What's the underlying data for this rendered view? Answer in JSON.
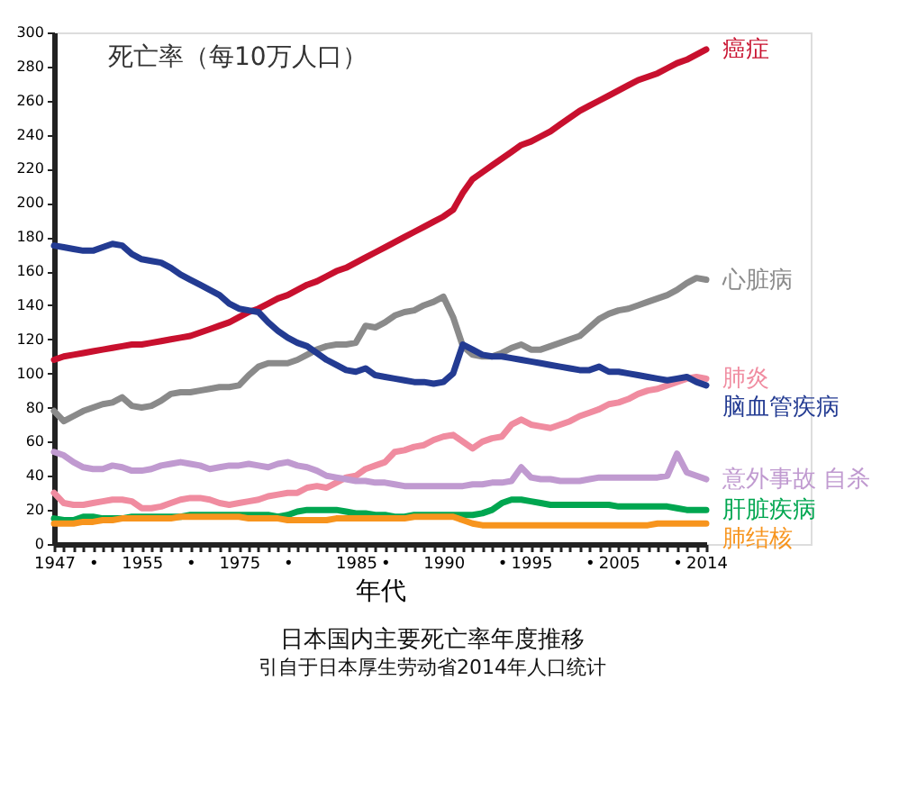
{
  "chart_data": {
    "type": "line",
    "title": "日本国内主要死亡率年度推移",
    "subtitle": "引自于日本厚生劳动省2014年人口统计",
    "ylabel": "死亡率（每10万人口）",
    "xlabel": "年代",
    "categories": [
      "1947",
      null,
      null,
      null,
      "•",
      null,
      null,
      null,
      null,
      "1955",
      null,
      null,
      null,
      null,
      "•",
      null,
      null,
      null,
      null,
      "1975",
      null,
      null,
      null,
      null,
      "•",
      null,
      null,
      null,
      null,
      null,
      null,
      "1985",
      null,
      null,
      "•",
      null,
      null,
      null,
      null,
      null,
      "1990",
      null,
      null,
      null,
      null,
      null,
      "•",
      null,
      null,
      "1995",
      null,
      null,
      null,
      null,
      null,
      "•",
      null,
      null,
      "2005",
      null,
      null,
      null,
      null,
      null,
      "•",
      null,
      null,
      "2014"
    ],
    "ylim": [
      0,
      300
    ],
    "yticks": [
      0,
      20,
      40,
      60,
      80,
      100,
      120,
      140,
      160,
      180,
      200,
      220,
      240,
      260,
      280,
      300
    ],
    "grid": false,
    "legend": false,
    "marker": "none",
    "line_style": "solid",
    "series": [
      {
        "name": "癌症",
        "color": "#c8102e",
        "values": [
          108,
          110,
          111,
          112,
          113,
          114,
          115,
          116,
          117,
          117,
          118,
          119,
          120,
          121,
          122,
          124,
          126,
          128,
          130,
          133,
          136,
          138,
          141,
          144,
          146,
          149,
          152,
          154,
          157,
          160,
          162,
          165,
          168,
          171,
          174,
          177,
          180,
          183,
          186,
          189,
          192,
          196,
          206,
          214,
          218,
          222,
          226,
          230,
          234,
          236,
          239,
          242,
          246,
          250,
          254,
          257,
          260,
          263,
          266,
          269,
          272,
          274,
          276,
          279,
          282,
          284,
          287,
          290
        ]
      },
      {
        "name": "心脏病",
        "color": "#8a8a8a",
        "values": [
          78,
          72,
          75,
          78,
          80,
          82,
          83,
          86,
          81,
          80,
          81,
          84,
          88,
          89,
          89,
          90,
          91,
          92,
          92,
          93,
          99,
          104,
          106,
          106,
          106,
          108,
          111,
          114,
          116,
          117,
          117,
          118,
          128,
          127,
          130,
          134,
          136,
          137,
          140,
          142,
          145,
          133,
          116,
          111,
          110,
          110,
          112,
          115,
          117,
          114,
          114,
          116,
          118,
          120,
          122,
          127,
          132,
          135,
          137,
          138,
          140,
          142,
          144,
          146,
          149,
          153,
          156,
          155
        ]
      },
      {
        "name": "肺炎",
        "color": "#f08ca0",
        "values": [
          30,
          24,
          23,
          23,
          24,
          25,
          26,
          26,
          25,
          21,
          21,
          22,
          24,
          26,
          27,
          27,
          26,
          24,
          23,
          24,
          25,
          26,
          28,
          29,
          30,
          30,
          33,
          34,
          33,
          36,
          39,
          40,
          44,
          46,
          48,
          54,
          55,
          57,
          58,
          61,
          63,
          64,
          60,
          56,
          60,
          62,
          63,
          70,
          73,
          70,
          69,
          68,
          70,
          72,
          75,
          77,
          79,
          82,
          83,
          85,
          88,
          90,
          91,
          93,
          95,
          97,
          98,
          97
        ]
      },
      {
        "name": "脑血管疾病",
        "color": "#233b92",
        "values": [
          175,
          174,
          173,
          172,
          172,
          174,
          176,
          175,
          170,
          167,
          166,
          165,
          162,
          158,
          155,
          152,
          149,
          146,
          141,
          138,
          137,
          136,
          130,
          125,
          121,
          118,
          116,
          112,
          108,
          105,
          102,
          101,
          103,
          99,
          98,
          97,
          96,
          95,
          95,
          94,
          95,
          100,
          117,
          114,
          111,
          110,
          110,
          109,
          108,
          107,
          106,
          105,
          104,
          103,
          102,
          102,
          104,
          101,
          101,
          100,
          99,
          98,
          97,
          96,
          97,
          98,
          95,
          93
        ]
      },
      {
        "name": "意外事故 自杀",
        "color": "#c09ad0",
        "values": [
          54,
          52,
          48,
          45,
          44,
          44,
          46,
          45,
          43,
          43,
          44,
          46,
          47,
          48,
          47,
          46,
          44,
          45,
          46,
          46,
          47,
          46,
          45,
          47,
          48,
          46,
          45,
          43,
          40,
          39,
          38,
          37,
          37,
          36,
          36,
          35,
          34,
          34,
          34,
          34,
          34,
          34,
          34,
          35,
          35,
          36,
          36,
          37,
          45,
          39,
          38,
          38,
          37,
          37,
          37,
          38,
          39,
          39,
          39,
          39,
          39,
          39,
          39,
          40,
          53,
          42,
          40,
          38
        ]
      },
      {
        "name": "肝脏疾病",
        "color": "#00a650",
        "values": [
          15,
          14,
          14,
          16,
          16,
          15,
          15,
          15,
          16,
          16,
          16,
          16,
          16,
          16,
          17,
          17,
          17,
          17,
          17,
          17,
          17,
          17,
          17,
          16,
          17,
          19,
          20,
          20,
          20,
          20,
          19,
          18,
          18,
          17,
          17,
          16,
          16,
          17,
          17,
          17,
          17,
          17,
          17,
          17,
          18,
          20,
          24,
          26,
          26,
          25,
          24,
          23,
          23,
          23,
          23,
          23,
          23,
          23,
          22,
          22,
          22,
          22,
          22,
          22,
          21,
          20,
          20,
          20
        ]
      },
      {
        "name": "肺结核",
        "color": "#f7941d",
        "values": [
          12,
          12,
          12,
          13,
          13,
          14,
          14,
          15,
          15,
          15,
          15,
          15,
          15,
          16,
          16,
          16,
          16,
          16,
          16,
          16,
          15,
          15,
          15,
          15,
          14,
          14,
          14,
          14,
          14,
          15,
          15,
          15,
          15,
          15,
          15,
          15,
          15,
          16,
          16,
          16,
          16,
          16,
          14,
          12,
          11,
          11,
          11,
          11,
          11,
          11,
          11,
          11,
          11,
          11,
          11,
          11,
          11,
          11,
          11,
          11,
          11,
          11,
          12,
          12,
          12,
          12,
          12,
          12
        ]
      }
    ]
  }
}
